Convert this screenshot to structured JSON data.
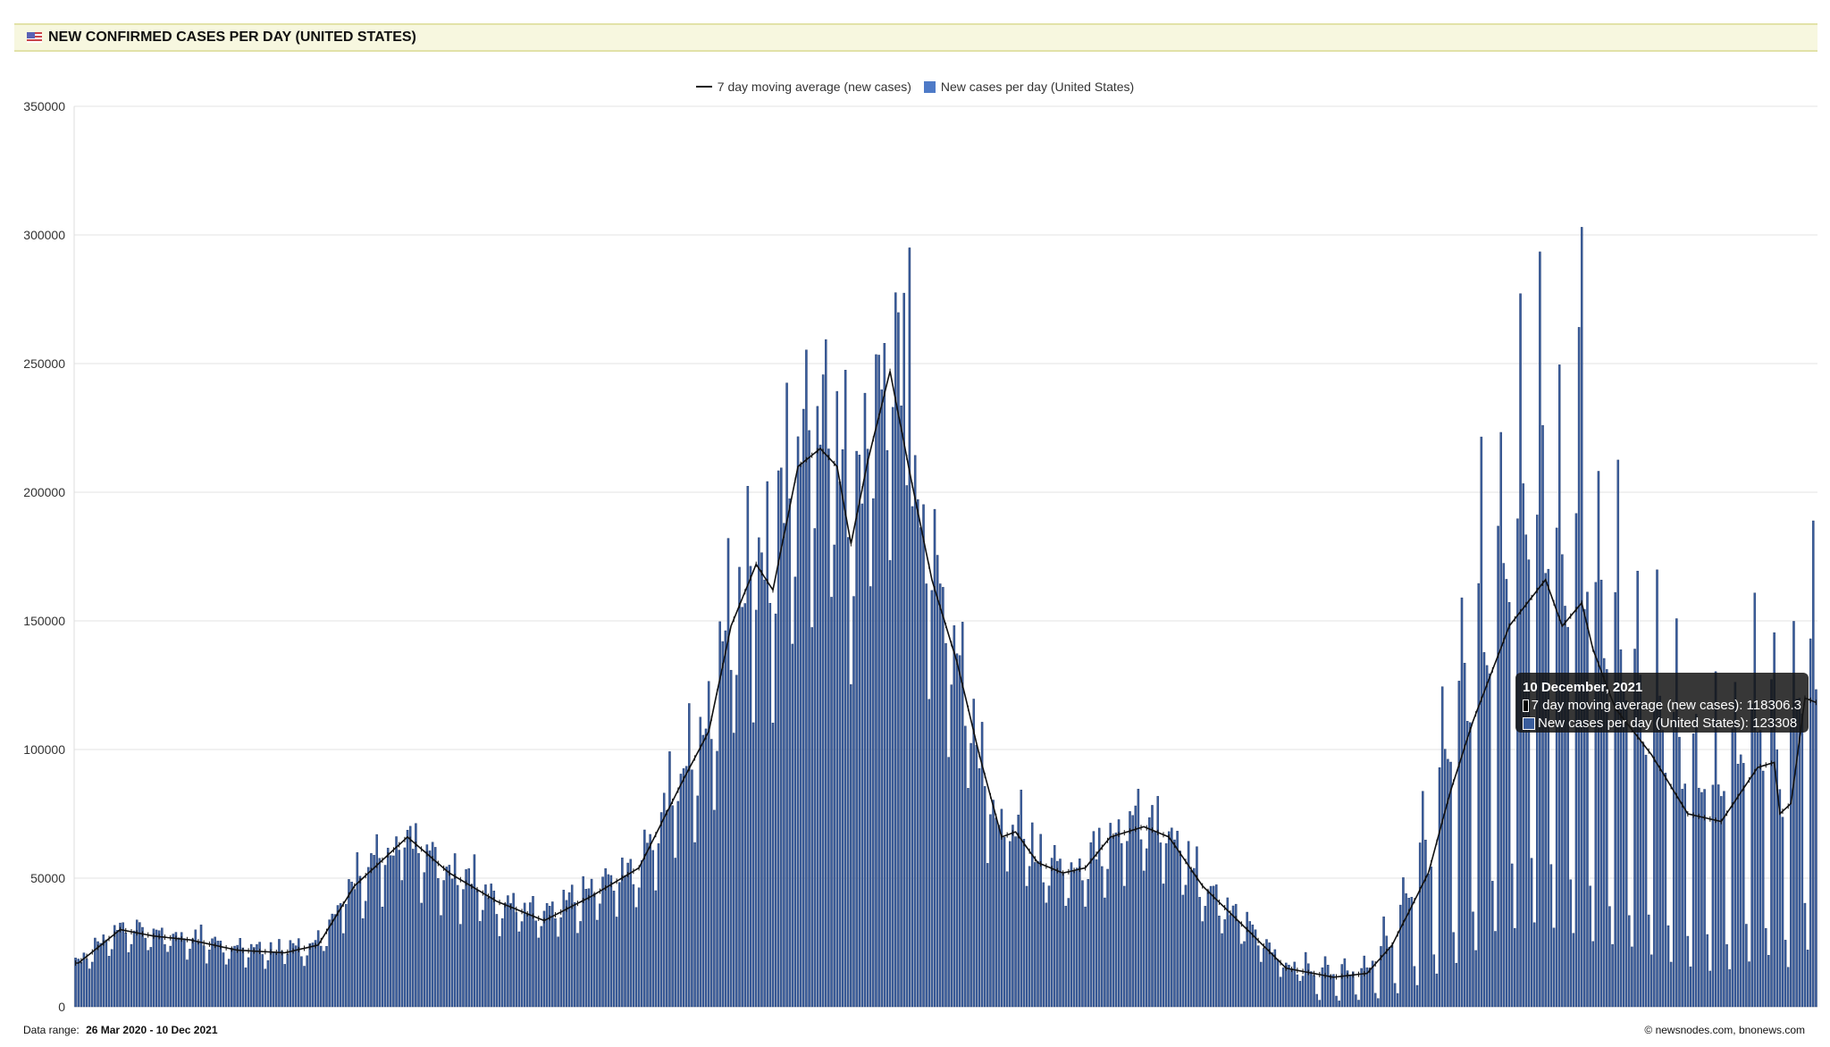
{
  "header": {
    "title": "NEW CONFIRMED CASES PER DAY (UNITED STATES)",
    "flag_icon": "us-flag-icon"
  },
  "footer": {
    "range_label": "Data range:",
    "range_value": "26 Mar 2020  -  10 Dec 2021",
    "credit": "©  newsnodes.com, bnonews.com"
  },
  "tooltip": {
    "date": "10 December, 2021",
    "ma_label": "7 day moving average (new cases): 118306.3",
    "cases_label": "New cases per day (United States): 123308"
  },
  "colors": {
    "bars": "#3a5d9c",
    "bar_edge": "#1f3768",
    "line": "#111111",
    "header_bg": "#f7f7df"
  },
  "chart_data": {
    "type": "bar",
    "title": "NEW CONFIRMED CASES PER DAY (UNITED STATES)",
    "x_start": "26 Mar 2020",
    "x_end": "10 Dec 2021",
    "days": 625,
    "ylim": [
      0,
      350000
    ],
    "yticks": [
      "0",
      "50000",
      "100000",
      "150000",
      "200000",
      "250000",
      "300000",
      "350000"
    ],
    "grid": true,
    "legend_position": "top-center",
    "series": [
      {
        "name": "7 day moving average (new cases)",
        "type": "line",
        "keypoints_day_value": [
          [
            0,
            17000
          ],
          [
            1,
            17000
          ],
          [
            16,
            30000
          ],
          [
            28,
            27500
          ],
          [
            41,
            26000
          ],
          [
            58,
            22000
          ],
          [
            75,
            21000
          ],
          [
            87,
            24000
          ],
          [
            100,
            47000
          ],
          [
            119,
            66000
          ],
          [
            134,
            52000
          ],
          [
            151,
            41000
          ],
          [
            168,
            33500
          ],
          [
            185,
            43000
          ],
          [
            202,
            54000
          ],
          [
            218,
            88500
          ],
          [
            227,
            107000
          ],
          [
            235,
            148000
          ],
          [
            244,
            172000
          ],
          [
            250,
            162000
          ],
          [
            259,
            210000
          ],
          [
            267,
            217000
          ],
          [
            273,
            210000
          ],
          [
            278,
            180000
          ],
          [
            284,
            212000
          ],
          [
            292,
            247000
          ],
          [
            299,
            208000
          ],
          [
            307,
            166000
          ],
          [
            316,
            134000
          ],
          [
            324,
            98000
          ],
          [
            332,
            66000
          ],
          [
            337,
            68000
          ],
          [
            345,
            56000
          ],
          [
            354,
            52000
          ],
          [
            362,
            54000
          ],
          [
            371,
            66000
          ],
          [
            383,
            70000
          ],
          [
            392,
            66000
          ],
          [
            404,
            47000
          ],
          [
            421,
            29000
          ],
          [
            434,
            15000
          ],
          [
            451,
            11500
          ],
          [
            463,
            13000
          ],
          [
            472,
            24000
          ],
          [
            485,
            52000
          ],
          [
            493,
            84000
          ],
          [
            501,
            111000
          ],
          [
            514,
            148000
          ],
          [
            527,
            166000
          ],
          [
            533,
            148000
          ],
          [
            540,
            157000
          ],
          [
            544,
            139000
          ],
          [
            552,
            116000
          ],
          [
            565,
            98000
          ],
          [
            578,
            75000
          ],
          [
            590,
            72000
          ],
          [
            603,
            93000
          ],
          [
            609,
            95000
          ],
          [
            611,
            75000
          ],
          [
            615,
            79000
          ],
          [
            620,
            120000
          ],
          [
            624,
            118306.3
          ]
        ]
      },
      {
        "name": "New cases per day (United States)",
        "type": "bar",
        "notable_values": {
          "peak_2021_01": 295000,
          "peak_2022_01_area": 303000,
          "last_day": 123308
        }
      }
    ]
  }
}
